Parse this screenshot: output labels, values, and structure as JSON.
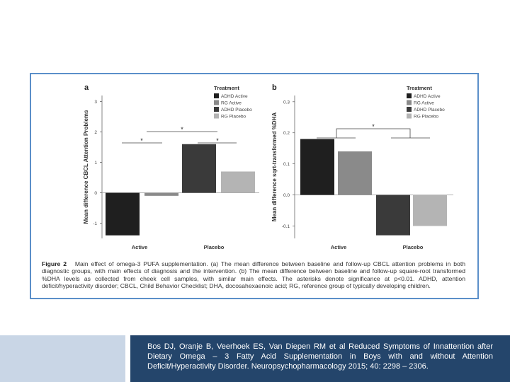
{
  "figure": {
    "caption_label": "Figure 2",
    "caption_text": "Main effect of omega-3 PUFA supplementation. (a) The mean difference between baseline and follow-up CBCL attention problems in both diagnostic groups, with main effects of diagnosis and the intervention. (b) The mean difference between baseline and follow-up square-root transformed %DHA levels as collected from cheek cell samples, with similar main effects. The asterisks denote significance at p<0.01. ADHD, attention deficit/hyperactivity disorder; CBCL, Child Behavior Checklist; DHA, docosahexaenoic acid; RG, reference group of typically developing children."
  },
  "citation": "Bos DJ, Oranje B, Veerhoek ES, Van Diepen RM et al Reduced Symptoms of Innattention after Dietary Omega – 3 Fatty Acid Supplementation in Boys with and without Attention Deficit/Hyperactivity Disorder. Neuropsychopharmacology 2015; 40: 2298 – 2306.",
  "colors": {
    "ADHD Active": "#1f1f1f",
    "RG Active": "#8a8a8a",
    "ADHD Placebo": "#3a3a3a",
    "RG Placebo": "#b4b4b4",
    "frame": "#5b8fc9",
    "bottom_left": "#c9d6e6",
    "bottom_right": "#24456b"
  },
  "chart_data": [
    {
      "type": "bar",
      "panel_label": "a",
      "ylabel": "Mean difference CBCL Attention Problems",
      "categories": [
        "Active",
        "Placebo"
      ],
      "series": [
        {
          "name": "ADHD Active",
          "category": "Active",
          "value": -1.4
        },
        {
          "name": "RG Active",
          "category": "Active",
          "value": -0.1
        },
        {
          "name": "ADHD Placebo",
          "category": "Placebo",
          "value": 1.6
        },
        {
          "name": "RG Placebo",
          "category": "Placebo",
          "value": 0.7
        }
      ],
      "ylim": [
        -1.5,
        3.2
      ],
      "yticks": [
        -1,
        0,
        1,
        2,
        3
      ],
      "ytick_labels": [
        "-1",
        "0",
        "1",
        "2",
        "3"
      ],
      "legend_title": "Treatment",
      "legend_position": "top-right",
      "annotations": [
        "*",
        "*",
        "*"
      ]
    },
    {
      "type": "bar",
      "panel_label": "b",
      "ylabel": "Mean difference sqrt-transformed %DHA",
      "categories": [
        "Active",
        "Placebo"
      ],
      "series": [
        {
          "name": "ADHD Active",
          "category": "Active",
          "value": 0.18
        },
        {
          "name": "RG Active",
          "category": "Active",
          "value": 0.14
        },
        {
          "name": "ADHD Placebo",
          "category": "Placebo",
          "value": -0.13
        },
        {
          "name": "RG Placebo",
          "category": "Placebo",
          "value": -0.1
        }
      ],
      "ylim": [
        -0.14,
        0.32
      ],
      "yticks": [
        -0.1,
        0.0,
        0.1,
        0.2,
        0.3
      ],
      "ytick_labels": [
        "-0.1",
        "0.0",
        "0.1",
        "0.2",
        "0.3"
      ],
      "legend_title": "Treatment",
      "legend_position": "top-right",
      "annotations": [
        "*"
      ]
    }
  ]
}
